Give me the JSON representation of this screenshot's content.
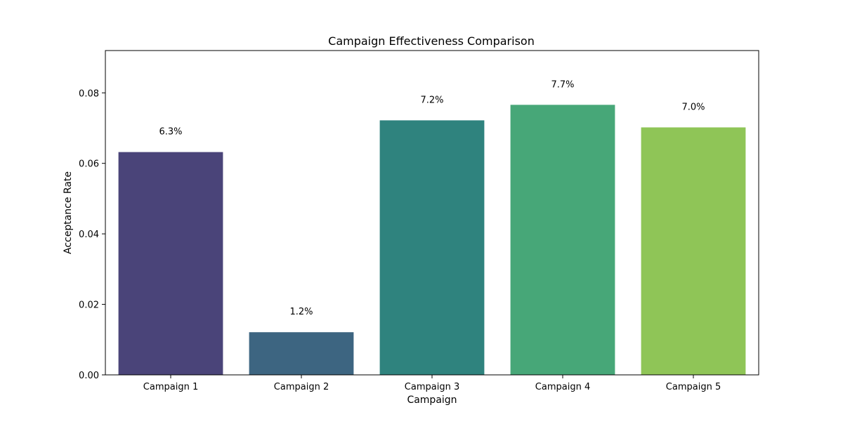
{
  "chart_data": {
    "type": "bar",
    "title": "Campaign Effectiveness Comparison",
    "xlabel": "Campaign",
    "ylabel": "Acceptance Rate",
    "categories": [
      "Campaign 1",
      "Campaign 2",
      "Campaign 3",
      "Campaign 4",
      "Campaign 5"
    ],
    "values": [
      0.0632,
      0.0121,
      0.0722,
      0.0766,
      0.0702
    ],
    "data_labels": [
      "6.3%",
      "1.2%",
      "7.2%",
      "7.7%",
      "7.0%"
    ],
    "colors": [
      "#4a4479",
      "#3d6581",
      "#2f837e",
      "#47a778",
      "#8fc557"
    ],
    "ylim": [
      0,
      0.092
    ],
    "yticks": [
      0.0,
      0.02,
      0.04,
      0.06,
      0.08
    ],
    "ytick_labels": [
      "0.00",
      "0.02",
      "0.04",
      "0.06",
      "0.08"
    ],
    "grid": false,
    "legend": "none"
  }
}
